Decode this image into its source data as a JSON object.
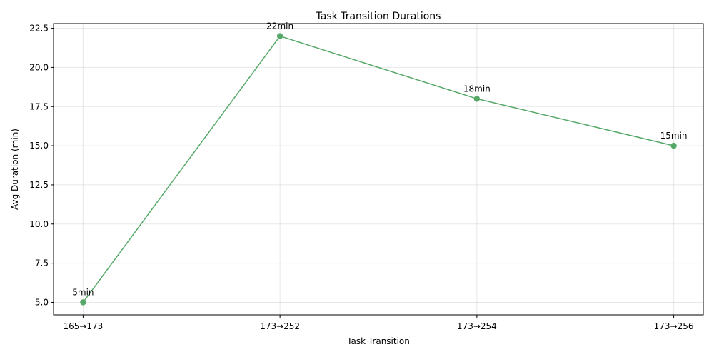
{
  "chart_data": {
    "type": "line",
    "title": "Task Transition Durations",
    "xlabel": "Task Transition",
    "ylabel": "Avg Duration (min)",
    "categories": [
      "165→173",
      "173→252",
      "173→254",
      "173→256"
    ],
    "series": [
      {
        "values": [
          5,
          22,
          18,
          15
        ],
        "color": "#55a868"
      }
    ],
    "data_labels": [
      "5min",
      "22min",
      "18min",
      "15min"
    ],
    "ylim": [
      4.2,
      22.8
    ],
    "yticks": [
      5.0,
      7.5,
      10.0,
      12.5,
      15.0,
      17.5,
      20.0,
      22.5
    ],
    "ytick_labels": [
      "5.0",
      "7.5",
      "10.0",
      "12.5",
      "15.0",
      "17.5",
      "20.0",
      "22.5"
    ],
    "grid": true
  }
}
